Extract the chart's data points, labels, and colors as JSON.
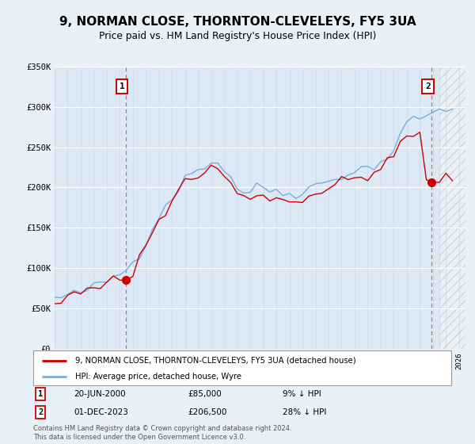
{
  "title": "9, NORMAN CLOSE, THORNTON-CLEVELEYS, FY5 3UA",
  "subtitle": "Price paid vs. HM Land Registry's House Price Index (HPI)",
  "legend_line1": "9, NORMAN CLOSE, THORNTON-CLEVELEYS, FY5 3UA (detached house)",
  "legend_line2": "HPI: Average price, detached house, Wyre",
  "footnote": "Contains HM Land Registry data © Crown copyright and database right 2024.\nThis data is licensed under the Open Government Licence v3.0.",
  "sale1_date": "20-JUN-2000",
  "sale1_price": "£85,000",
  "sale1_hpi": "9% ↓ HPI",
  "sale2_date": "01-DEC-2023",
  "sale2_price": "£206,500",
  "sale2_hpi": "28% ↓ HPI",
  "ylim": [
    0,
    350000
  ],
  "xlim_start": 1995.0,
  "xlim_end": 2026.5,
  "hatch_start": 2024.5,
  "sale1_x": 2000.47,
  "sale1_y": 85000,
  "sale2_x": 2023.92,
  "sale2_y": 206500,
  "line_color_red": "#cc0000",
  "line_color_blue": "#7aaddb",
  "bg_color": "#e8f0f8",
  "plot_bg": "#dce9f5",
  "grid_color": "#c5d8ec",
  "hpi_base_values": [
    62000,
    63500,
    65000,
    67000,
    70000,
    73000,
    76000,
    80000,
    84000,
    88000,
    93000,
    99000,
    107000,
    118000,
    133000,
    150000,
    165000,
    177000,
    188000,
    200000,
    210000,
    218000,
    222000,
    228000,
    232000,
    230000,
    224000,
    212000,
    200000,
    194000,
    196000,
    199000,
    200000,
    198000,
    195000,
    194000,
    192000,
    193000,
    196000,
    200000,
    202000,
    205000,
    208000,
    211000,
    215000,
    218000,
    220000,
    222000,
    225000,
    228000,
    231000,
    236000,
    248000,
    265000,
    278000,
    285000,
    288000,
    290000,
    292000,
    294000,
    296000,
    298000
  ],
  "red_base_values": [
    60000,
    61000,
    63000,
    65000,
    68000,
    71000,
    74000,
    77000,
    81000,
    84000,
    85000,
    91000,
    100000,
    113000,
    128000,
    145000,
    160000,
    173000,
    184000,
    196000,
    205000,
    212000,
    215000,
    220000,
    224000,
    222000,
    216000,
    204000,
    192000,
    186000,
    188000,
    191000,
    192000,
    189000,
    186000,
    184000,
    182000,
    183000,
    187000,
    191000,
    193000,
    196000,
    199000,
    202000,
    206000,
    209000,
    211000,
    213000,
    216000,
    219000,
    222000,
    227000,
    239000,
    256000,
    264000,
    268000,
    264000,
    206500,
    208000,
    210000,
    212000,
    214000
  ],
  "noise_seed": 42,
  "hpi_noise_scale": 3500,
  "red_noise_scale": 4000
}
